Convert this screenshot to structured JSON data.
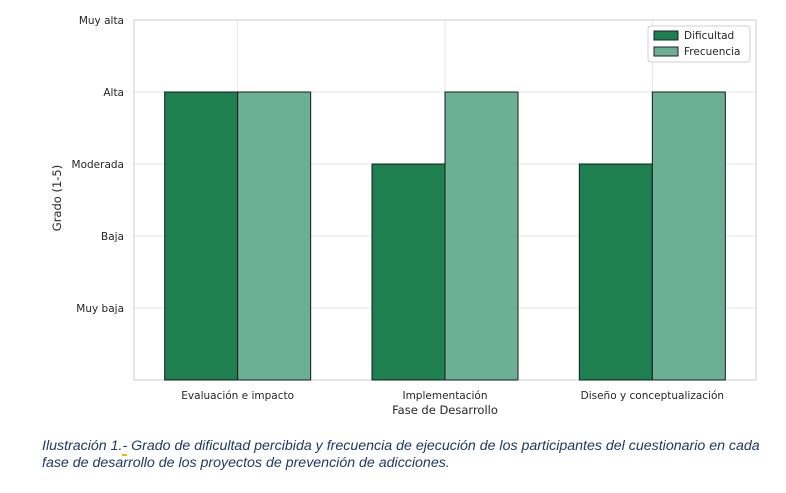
{
  "chart_data": {
    "type": "bar",
    "xlabel": "Fase de Desarrollo",
    "ylabel": "Grado (1-5)",
    "categories": [
      "Evaluación e impacto",
      "Implementación",
      "Diseño y conceptualización"
    ],
    "series": [
      {
        "name": "Dificultad",
        "values": [
          4,
          3,
          3
        ],
        "color": "#1e7f4f"
      },
      {
        "name": "Frecuencia",
        "values": [
          4,
          4,
          4
        ],
        "color": "#6bb094"
      }
    ],
    "ylim": [
      0,
      5
    ],
    "yticks": [
      1,
      2,
      3,
      4,
      5
    ],
    "ytick_labels": [
      "Muy baja",
      "Baja",
      "Moderada",
      "Alta",
      "Muy alta"
    ],
    "grid": true,
    "legend_position": "top-right"
  },
  "caption": {
    "prefix": "Ilustración 1.",
    "mark": "-",
    "text": " Grado de dificultad percibida y frecuencia de ejecución de los participantes del cuestionario en cada fase de desarrollo de los proyectos de prevención de adicciones."
  }
}
